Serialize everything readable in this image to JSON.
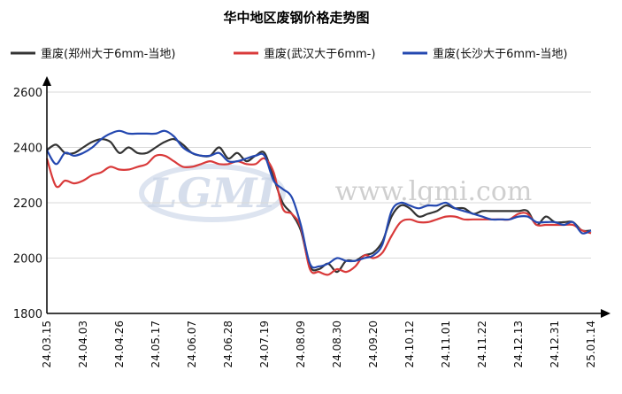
{
  "chart_data": {
    "type": "line",
    "title": "华中地区废钢价格走势图",
    "xlabel": "",
    "ylabel": "",
    "ylim": [
      1800,
      2600
    ],
    "yticks": [
      1800,
      2000,
      2200,
      2400,
      2600
    ],
    "xtick_labels": [
      "24.03.15",
      "24.04.03",
      "24.04.26",
      "24.05.17",
      "24.06.07",
      "24.06.28",
      "24.07.19",
      "24.08.09",
      "24.08.30",
      "24.09.20",
      "24.10.12",
      "24.11.01",
      "24.11.22",
      "24.12.13",
      "24.12.31",
      "25.01.14"
    ],
    "grid": true,
    "legend_position": "top",
    "watermark": {
      "logo": "LGMI",
      "url": "www.lgmi.com"
    },
    "series": [
      {
        "name": "重废(郑州大于6mm-当地)",
        "color": "#333333",
        "values": [
          2390,
          2410,
          2380,
          2380,
          2400,
          2420,
          2430,
          2420,
          2380,
          2400,
          2380,
          2380,
          2400,
          2420,
          2430,
          2410,
          2380,
          2370,
          2370,
          2400,
          2360,
          2380,
          2350,
          2370,
          2380,
          2290,
          2200,
          2160,
          2100,
          1970,
          1960,
          1980,
          1950,
          1990,
          1990,
          2010,
          2020,
          2060,
          2150,
          2190,
          2180,
          2150,
          2160,
          2170,
          2190,
          2180,
          2180,
          2160,
          2170,
          2170,
          2170,
          2170,
          2170,
          2170,
          2120,
          2150,
          2130,
          2130,
          2130,
          2100,
          2100
        ]
      },
      {
        "name": "重废(武汉大于6mm-)",
        "color": "#d93a3a",
        "values": [
          2360,
          2260,
          2280,
          2270,
          2280,
          2300,
          2310,
          2330,
          2320,
          2320,
          2330,
          2340,
          2370,
          2370,
          2350,
          2330,
          2330,
          2340,
          2350,
          2340,
          2340,
          2350,
          2340,
          2340,
          2360,
          2310,
          2180,
          2160,
          2110,
          1960,
          1950,
          1940,
          1960,
          1950,
          1970,
          2010,
          2000,
          2020,
          2080,
          2130,
          2140,
          2130,
          2130,
          2140,
          2150,
          2150,
          2140,
          2140,
          2140,
          2140,
          2140,
          2140,
          2160,
          2160,
          2120,
          2120,
          2120,
          2120,
          2120,
          2100,
          2090
        ]
      },
      {
        "name": "重废(长沙大于6mm-当地)",
        "color": "#2448b0",
        "values": [
          2390,
          2340,
          2380,
          2370,
          2380,
          2400,
          2430,
          2450,
          2460,
          2450,
          2450,
          2450,
          2450,
          2460,
          2440,
          2400,
          2380,
          2370,
          2370,
          2380,
          2350,
          2350,
          2360,
          2370,
          2370,
          2280,
          2250,
          2220,
          2120,
          1980,
          1970,
          1980,
          2000,
          1990,
          1990,
          2000,
          2010,
          2050,
          2170,
          2200,
          2190,
          2180,
          2190,
          2190,
          2200,
          2180,
          2170,
          2160,
          2150,
          2140,
          2140,
          2140,
          2150,
          2150,
          2130,
          2130,
          2130,
          2120,
          2130,
          2090,
          2100
        ]
      }
    ]
  }
}
